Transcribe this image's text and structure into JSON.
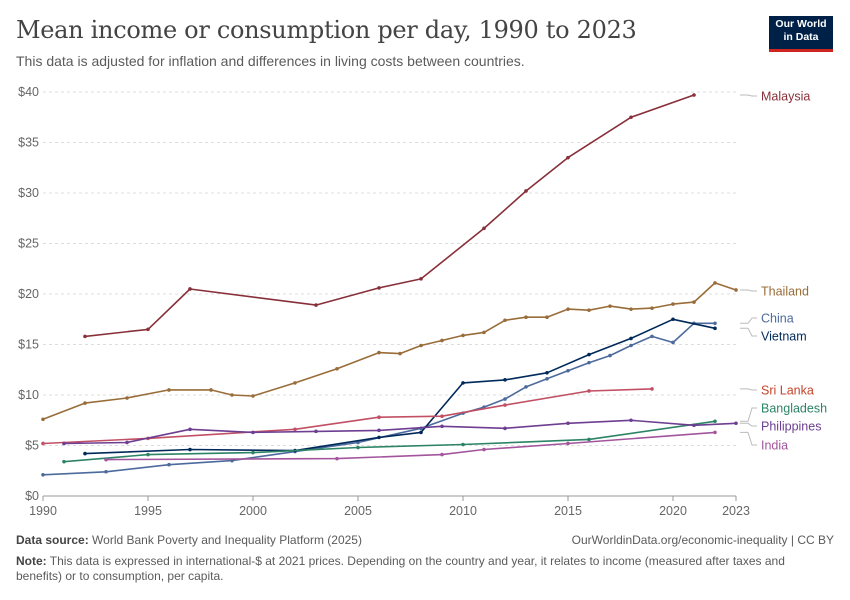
{
  "header": {
    "title": "Mean income or consumption per day, 1990 to 2023",
    "subtitle": "This data is adjusted for inflation and differences in living costs between countries.",
    "logo_line1": "Our World",
    "logo_line2": "in Data"
  },
  "footer": {
    "source_label": "Data source:",
    "source_text": "World Bank Poverty and Inequality Platform (2025)",
    "url": "OurWorldinData.org/economic-inequality | CC BY",
    "note_label": "Note:",
    "note_text": "This data is expressed in international-$ at 2021 prices. Depending on the country and year, it relates to income (measured after taxes and benefits) or to consumption, per capita."
  },
  "chart_data": {
    "type": "line",
    "xlim": [
      1990,
      2023
    ],
    "ylim": [
      0,
      40
    ],
    "x_ticks": [
      1990,
      1995,
      2000,
      2005,
      2010,
      2015,
      2020,
      2023
    ],
    "y_ticks": [
      0,
      5,
      10,
      15,
      20,
      25,
      30,
      35,
      40
    ],
    "y_tick_labels": [
      "$0",
      "$5",
      "$10",
      "$15",
      "$20",
      "$25",
      "$30",
      "$35",
      "$40"
    ],
    "grid": "horizontal dashed",
    "legend": "right (line-end labels)",
    "series": [
      {
        "name": "Malaysia",
        "color": "#883039",
        "points": [
          [
            1992,
            15.8
          ],
          [
            1995,
            16.5
          ],
          [
            1997,
            20.5
          ],
          [
            2003,
            18.9
          ],
          [
            2006,
            20.6
          ],
          [
            2008,
            21.5
          ],
          [
            2011,
            26.5
          ],
          [
            2013,
            30.2
          ],
          [
            2015,
            33.5
          ],
          [
            2018,
            37.5
          ],
          [
            2021,
            39.7
          ]
        ]
      },
      {
        "name": "Thailand",
        "color": "#996d39",
        "points": [
          [
            1990,
            7.6
          ],
          [
            1992,
            9.2
          ],
          [
            1994,
            9.7
          ],
          [
            1996,
            10.5
          ],
          [
            1998,
            10.5
          ],
          [
            1999,
            10.0
          ],
          [
            2000,
            9.9
          ],
          [
            2002,
            11.2
          ],
          [
            2004,
            12.6
          ],
          [
            2006,
            14.2
          ],
          [
            2007,
            14.1
          ],
          [
            2008,
            14.9
          ],
          [
            2009,
            15.4
          ],
          [
            2010,
            15.9
          ],
          [
            2011,
            16.2
          ],
          [
            2012,
            17.4
          ],
          [
            2013,
            17.7
          ],
          [
            2014,
            17.7
          ],
          [
            2015,
            18.5
          ],
          [
            2016,
            18.4
          ],
          [
            2017,
            18.8
          ],
          [
            2018,
            18.5
          ],
          [
            2019,
            18.6
          ],
          [
            2020,
            19.0
          ],
          [
            2021,
            19.2
          ],
          [
            2022,
            21.1
          ],
          [
            2023,
            20.4
          ]
        ]
      },
      {
        "name": "China",
        "color": "#4c6a9c",
        "points": [
          [
            1990,
            2.1
          ],
          [
            1993,
            2.4
          ],
          [
            1996,
            3.1
          ],
          [
            1999,
            3.5
          ],
          [
            2002,
            4.4
          ],
          [
            2005,
            5.3
          ],
          [
            2008,
            6.7
          ],
          [
            2010,
            8.2
          ],
          [
            2011,
            8.8
          ],
          [
            2012,
            9.6
          ],
          [
            2013,
            10.8
          ],
          [
            2014,
            11.6
          ],
          [
            2015,
            12.4
          ],
          [
            2016,
            13.2
          ],
          [
            2017,
            13.9
          ],
          [
            2018,
            14.9
          ],
          [
            2019,
            15.8
          ],
          [
            2020,
            15.2
          ],
          [
            2021,
            17.1
          ],
          [
            2022,
            17.1
          ]
        ]
      },
      {
        "name": "Vietnam",
        "color": "#00295b",
        "points": [
          [
            1992,
            4.2
          ],
          [
            1997,
            4.6
          ],
          [
            2002,
            4.5
          ],
          [
            2006,
            5.8
          ],
          [
            2008,
            6.3
          ],
          [
            2010,
            11.2
          ],
          [
            2012,
            11.5
          ],
          [
            2014,
            12.2
          ],
          [
            2016,
            14.0
          ],
          [
            2018,
            15.6
          ],
          [
            2020,
            17.5
          ],
          [
            2022,
            16.6
          ]
        ]
      },
      {
        "name": "Sri Lanka",
        "color": "#c15065",
        "points": [
          [
            1990,
            5.2
          ],
          [
            1995,
            5.7
          ],
          [
            2002,
            6.6
          ],
          [
            2006,
            7.8
          ],
          [
            2009,
            7.9
          ],
          [
            2012,
            9.0
          ],
          [
            2016,
            10.4
          ],
          [
            2019,
            10.6
          ]
        ]
      },
      {
        "name": "Bangladesh",
        "color": "#2c8465",
        "points": [
          [
            1991,
            3.4
          ],
          [
            1995,
            4.1
          ],
          [
            2000,
            4.3
          ],
          [
            2005,
            4.8
          ],
          [
            2010,
            5.1
          ],
          [
            2016,
            5.6
          ],
          [
            2022,
            7.4
          ]
        ]
      },
      {
        "name": "Philippines",
        "color": "#6d3e91",
        "points": [
          [
            1991,
            5.2
          ],
          [
            1994,
            5.3
          ],
          [
            1997,
            6.6
          ],
          [
            2000,
            6.3
          ],
          [
            2003,
            6.4
          ],
          [
            2006,
            6.5
          ],
          [
            2009,
            6.9
          ],
          [
            2012,
            6.7
          ],
          [
            2015,
            7.2
          ],
          [
            2018,
            7.5
          ],
          [
            2021,
            7.0
          ],
          [
            2023,
            7.2
          ]
        ]
      },
      {
        "name": "India",
        "color": "#a2559c",
        "points": [
          [
            1993,
            3.6
          ],
          [
            2004,
            3.7
          ],
          [
            2009,
            4.1
          ],
          [
            2011,
            4.6
          ],
          [
            2015,
            5.2
          ],
          [
            2022,
            6.3
          ]
        ]
      }
    ],
    "label_colors": {
      "Malaysia": "#883039",
      "Thailand": "#996d39",
      "China": "#4c6a9c",
      "Vietnam": "#00295b",
      "Sri Lanka": "#c4442a",
      "Bangladesh": "#2c8465",
      "Philippines": "#6d3e91",
      "India": "#a2559c"
    }
  }
}
